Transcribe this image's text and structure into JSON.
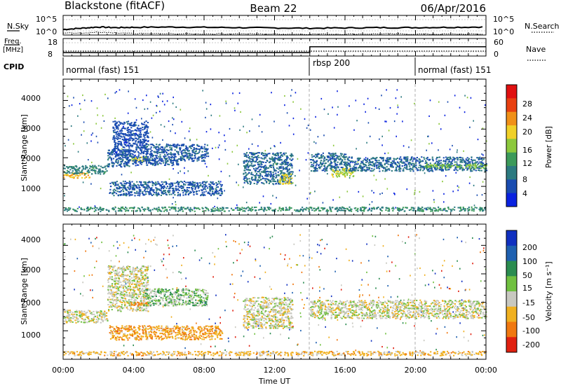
{
  "header": {
    "station": "Blackstone (fitACF)",
    "beam": "Beam 22",
    "date": "06/Apr/2016"
  },
  "noise_panel": {
    "left_label": "N.Sky",
    "right_label": "N.Search",
    "left_ticks": [
      "10^5",
      "10^0"
    ],
    "right_ticks": [
      "10^5",
      "10^0"
    ]
  },
  "freq_panel": {
    "left_label_1": "Freq.",
    "left_label_2": "[MHz]",
    "left_ticks": [
      "18",
      "8"
    ],
    "right_label": "Nave",
    "right_ticks": [
      "60",
      "0"
    ]
  },
  "cpid_panel": {
    "label": "CPID",
    "segments": [
      {
        "start_h": 0,
        "end_h": 14,
        "name": "normal (fast) 151"
      },
      {
        "start_h": 14,
        "end_h": 20,
        "name": "rbsp 200"
      },
      {
        "start_h": 20,
        "end_h": 24,
        "name": "normal (fast) 151"
      }
    ]
  },
  "power_panel": {
    "ylabel": "Slant Range [km]",
    "yticks": [
      "4000",
      "3000",
      "2000",
      "1000"
    ],
    "colorbar_label": "Power [dB]",
    "colorbar_ticks": [
      "28",
      "24",
      "20",
      "16",
      "12",
      "8",
      "4"
    ],
    "colors": [
      "#0a22e0",
      "#1a4cb0",
      "#2c7a80",
      "#3c9a5a",
      "#8cc83c",
      "#f0d028",
      "#f09018",
      "#e84010",
      "#e01010"
    ]
  },
  "velocity_panel": {
    "ylabel": "Slant Range [km]",
    "yticks": [
      "4000",
      "3000",
      "2000",
      "1000"
    ],
    "colorbar_label": "Velocity [m s⁻¹]",
    "colorbar_ticks": [
      "200",
      "100",
      "50",
      "15",
      "-15",
      "-50",
      "-100",
      "-200"
    ],
    "colors": [
      "#1030c0",
      "#1e60b0",
      "#2a8c50",
      "#70c040",
      "#c8c8c0",
      "#f0b020",
      "#f07810",
      "#e02010"
    ]
  },
  "x_axis": {
    "ticks": [
      "00:00",
      "04:00",
      "08:00",
      "12:00",
      "16:00",
      "20:00",
      "00:00"
    ],
    "label": "Time UT"
  },
  "chart_data": [
    {
      "type": "line",
      "panel": "noise",
      "x_hours": [
        0,
        1,
        2,
        3,
        4,
        6,
        8,
        10,
        12,
        14,
        16,
        18,
        20,
        22,
        24
      ],
      "series": [
        {
          "values_log10": [
            1.8,
            2.2,
            2.6,
            2.4,
            2.5,
            2.6,
            2.5,
            2.4,
            2.3,
            2.2,
            2.3,
            2.4,
            2.4,
            2.5,
            2.6
          ]
        },
        {
          "values_log10": [
            0.6,
            0.7,
            0.9,
            0.6,
            0.5,
            0.4,
            0.4,
            0.4,
            0.3,
            0.3,
            0.3,
            0.4,
            0.3,
            0.3,
            0.3
          ]
        }
      ]
    },
    {
      "type": "line",
      "panel": "frequency",
      "x_hours": [
        0,
        14,
        14,
        24
      ],
      "series": [
        {
          "values": [
            10.6,
            10.6,
            15.0,
            15.0
          ]
        }
      ]
    },
    {
      "type": "heatmap",
      "panel": "power",
      "x_range": [
        0,
        24
      ],
      "y_range": [
        0,
        4500
      ],
      "zlim": [
        0,
        30
      ],
      "gates": [
        {
          "x": [
            0,
            1.5
          ],
          "y": [
            1300,
            1500
          ],
          "z": 20
        },
        {
          "x": [
            0,
            2.5
          ],
          "y": [
            1450,
            1750
          ],
          "z": 9
        },
        {
          "x": [
            2.5,
            3.8
          ],
          "y": [
            1700,
            2300
          ],
          "z": 6
        },
        {
          "x": [
            2.8,
            4.8
          ],
          "y": [
            2000,
            3300
          ],
          "z": 5
        },
        {
          "x": [
            3.8,
            4.8
          ],
          "y": [
            1900,
            2050
          ],
          "z": 17
        },
        {
          "x": [
            4.5,
            8.2
          ],
          "y": [
            1900,
            2500
          ],
          "z": 6
        },
        {
          "x": [
            3.5,
            6.5
          ],
          "y": [
            1750,
            1950
          ],
          "z": 6
        },
        {
          "x": [
            2.6,
            9.0
          ],
          "y": [
            700,
            1200
          ],
          "z": 6
        },
        {
          "x": [
            10.2,
            13.0
          ],
          "y": [
            1100,
            2200
          ],
          "z": 7
        },
        {
          "x": [
            12.2,
            13.0
          ],
          "y": [
            1100,
            1450
          ],
          "z": 18
        },
        {
          "x": [
            14.0,
            16.0
          ],
          "y": [
            1550,
            2200
          ],
          "z": 7
        },
        {
          "x": [
            15.2,
            16.5
          ],
          "y": [
            1350,
            1650
          ],
          "z": 16
        },
        {
          "x": [
            16.0,
            24.0
          ],
          "y": [
            1550,
            2050
          ],
          "z": 7
        },
        {
          "x": [
            20.5,
            24.0
          ],
          "y": [
            1650,
            1800
          ],
          "z": 14
        },
        {
          "x": [
            0,
            24.0
          ],
          "y": [
            150,
            300
          ],
          "z": 10
        }
      ]
    },
    {
      "type": "heatmap",
      "panel": "velocity",
      "x_range": [
        0,
        24
      ],
      "y_range": [
        0,
        4500
      ],
      "zlim": [
        -250,
        250
      ],
      "gates": [
        {
          "x": [
            0,
            2.5
          ],
          "y": [
            1300,
            1750
          ],
          "z": 0
        },
        {
          "x": [
            2.5,
            4.8
          ],
          "y": [
            1700,
            3300
          ],
          "z": 0
        },
        {
          "x": [
            3.8,
            4.8
          ],
          "y": [
            1900,
            2050
          ],
          "z": -70
        },
        {
          "x": [
            4.5,
            8.2
          ],
          "y": [
            1900,
            2500
          ],
          "z": 20
        },
        {
          "x": [
            2.6,
            9.0
          ],
          "y": [
            700,
            1200
          ],
          "z": -40
        },
        {
          "x": [
            10.2,
            13.0
          ],
          "y": [
            1100,
            2200
          ],
          "z": 0
        },
        {
          "x": [
            14.0,
            24.0
          ],
          "y": [
            1450,
            2100
          ],
          "z": 0
        },
        {
          "x": [
            0,
            24.0
          ],
          "y": [
            150,
            300
          ],
          "z": -30
        }
      ]
    }
  ]
}
